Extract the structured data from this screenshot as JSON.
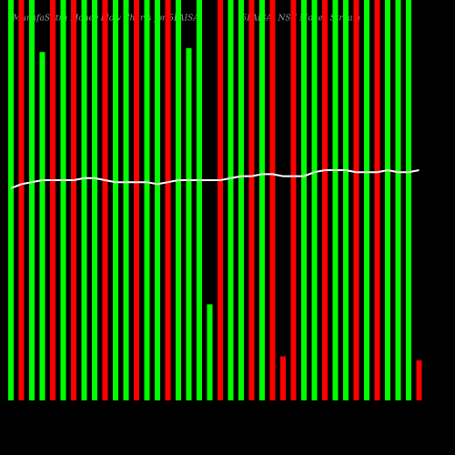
{
  "chart_data": {
    "type": "bar",
    "title": "MunafaSutra Money Flow Charts for 5PAISA",
    "subtitle": "(5PAISA) NSE Money Stream",
    "categories": [
      null,
      null,
      null,
      null,
      null,
      null,
      null,
      null,
      null,
      null,
      null,
      null,
      null,
      null,
      null,
      null,
      null,
      null,
      null,
      null,
      null,
      null,
      null,
      null,
      null,
      null,
      null,
      null,
      null,
      null,
      null,
      null,
      null,
      null,
      null,
      null,
      null,
      null,
      null,
      null
    ],
    "values": [
      100,
      100,
      100,
      87,
      100,
      100,
      100,
      100,
      100,
      100,
      100,
      100,
      100,
      100,
      100,
      100,
      100,
      88,
      100,
      24,
      100,
      100,
      100,
      100,
      100,
      100,
      11,
      100,
      100,
      100,
      100,
      100,
      100,
      100,
      100,
      100,
      100,
      100,
      100,
      10
    ],
    "colors": [
      "#00ff00",
      "#ff0000",
      "#00ff00",
      "#00ff00",
      "#ff0000",
      "#00ff00",
      "#ff0000",
      "#00ff00",
      "#00ff00",
      "#ff0000",
      "#00ff00",
      "#00ff00",
      "#ff0000",
      "#00ff00",
      "#00ff00",
      "#ff0000",
      "#00ff00",
      "#00ff00",
      "#00ff00",
      "#00ff00",
      "#ff0000",
      "#00ff00",
      "#00ff00",
      "#ff0000",
      "#00ff00",
      "#ff0000",
      "#ff0000",
      "#ff0000",
      "#00ff00",
      "#00ff00",
      "#ff0000",
      "#00ff00",
      "#00ff00",
      "#ff0000",
      "#00ff00",
      "#ff0000",
      "#00ff00",
      "#00ff00",
      "#00ff00",
      "#ff0000"
    ],
    "line_values": [
      53,
      54,
      54.5,
      55,
      55,
      55,
      55,
      55.5,
      55.5,
      55,
      54.5,
      54.5,
      54.5,
      54.5,
      54,
      54.5,
      55,
      55,
      55,
      55,
      55,
      55.5,
      56,
      56,
      56.5,
      56.5,
      56,
      56,
      56,
      57,
      57.5,
      57.5,
      57.5,
      57,
      57,
      57,
      57.5,
      57,
      57,
      57.5
    ],
    "line_color": "#ffffff",
    "ylim": [
      0,
      100
    ]
  }
}
